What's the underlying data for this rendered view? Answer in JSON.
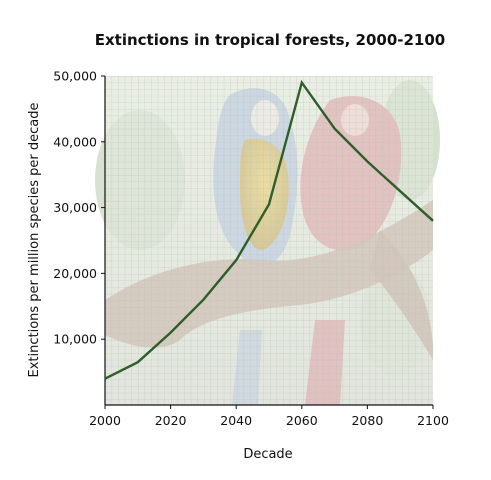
{
  "chart_data": {
    "type": "line",
    "title": "Extinctions in tropical forests, 2000-2100",
    "xlabel": "Decade",
    "ylabel": "Extinctions per million species per decade",
    "xlim": [
      2000,
      2100
    ],
    "ylim": [
      0,
      50000
    ],
    "x_ticks": [
      "2000",
      "2020",
      "2040",
      "2060",
      "2080",
      "2100"
    ],
    "y_ticks": [
      "10,000",
      "20,000",
      "30,000",
      "40,000",
      "50,000"
    ],
    "grid": true,
    "background_image": "parrots-on-branch (photo, faded)",
    "series": [
      {
        "x": [
          2000,
          2010,
          2020,
          2030,
          2040,
          2050,
          2060,
          2070,
          2080,
          2090,
          2100
        ],
        "values": [
          4000,
          6500,
          11000,
          16000,
          22000,
          30500,
          49000,
          42000,
          37000,
          32500,
          28000
        ],
        "color": "#2f5e2a"
      }
    ]
  }
}
